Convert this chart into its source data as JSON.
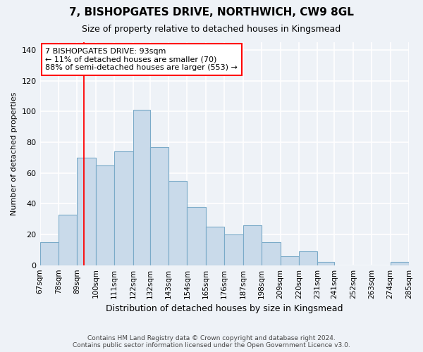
{
  "title": "7, BISHOPGATES DRIVE, NORTHWICH, CW9 8GL",
  "subtitle": "Size of property relative to detached houses in Kingsmead",
  "xlabel": "Distribution of detached houses by size in Kingsmead",
  "ylabel": "Number of detached properties",
  "bin_labels": [
    "67sqm",
    "78sqm",
    "89sqm",
    "100sqm",
    "111sqm",
    "122sqm",
    "132sqm",
    "143sqm",
    "154sqm",
    "165sqm",
    "176sqm",
    "187sqm",
    "198sqm",
    "209sqm",
    "220sqm",
    "231sqm",
    "241sqm",
    "252sqm",
    "263sqm",
    "274sqm",
    "285sqm"
  ],
  "bins": [
    67,
    78,
    89,
    100,
    111,
    122,
    132,
    143,
    154,
    165,
    176,
    187,
    198,
    209,
    220,
    231,
    241,
    252,
    263,
    274,
    285
  ],
  "heights": [
    15,
    33,
    70,
    65,
    74,
    101,
    77,
    55,
    38,
    25,
    20,
    26,
    15,
    6,
    9,
    2,
    0,
    0,
    0,
    2
  ],
  "bar_color": "#c9daea",
  "bar_edge_color": "#7aaac8",
  "red_line_x": 93,
  "annotation_text": "7 BISHOPGATES DRIVE: 93sqm\n← 11% of detached houses are smaller (70)\n88% of semi-detached houses are larger (553) →",
  "annotation_box_color": "white",
  "annotation_box_edge_color": "red",
  "ylim": [
    0,
    145
  ],
  "yticks": [
    0,
    20,
    40,
    60,
    80,
    100,
    120,
    140
  ],
  "footer_line1": "Contains HM Land Registry data © Crown copyright and database right 2024.",
  "footer_line2": "Contains public sector information licensed under the Open Government Licence v3.0.",
  "background_color": "#eef2f7",
  "grid_color": "white"
}
